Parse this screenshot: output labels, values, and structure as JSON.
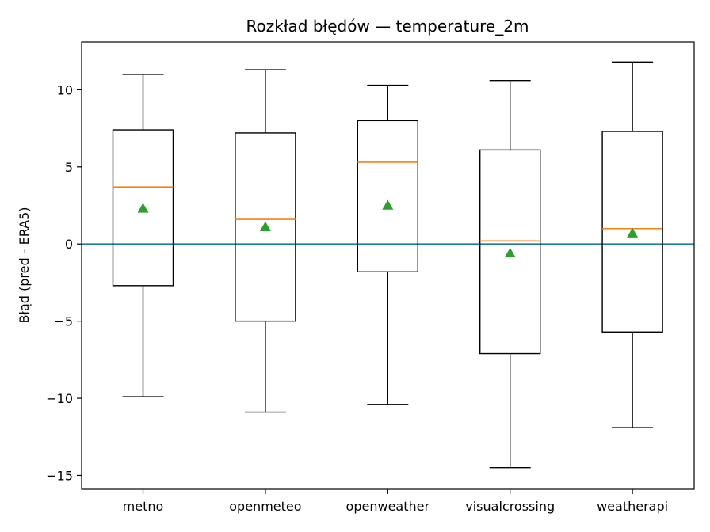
{
  "chart_data": {
    "type": "box",
    "title": "Rozkład błędów — temperature_2m",
    "xlabel": "",
    "ylabel": "Błąd (pred - ERA5)",
    "ylim": [
      -15.9,
      13.1
    ],
    "yticks": [
      10,
      5,
      0,
      -5,
      -10,
      -15
    ],
    "ytick_labels": [
      "10",
      "5",
      "0",
      "−5",
      "−10",
      "−15"
    ],
    "categories": [
      "metno",
      "openmeteo",
      "openweather",
      "visualcrossing",
      "weatherapi"
    ],
    "series": [
      {
        "category": "metno",
        "whisker_low": -9.9,
        "q1": -2.7,
        "median": 3.7,
        "q3": 7.4,
        "whisker_high": 11.0,
        "mean": 2.3
      },
      {
        "category": "openmeteo",
        "whisker_low": -10.9,
        "q1": -5.0,
        "median": 1.6,
        "q3": 7.2,
        "whisker_high": 11.3,
        "mean": 1.1
      },
      {
        "category": "openweather",
        "whisker_low": -10.4,
        "q1": -1.8,
        "median": 5.3,
        "q3": 8.0,
        "whisker_high": 10.3,
        "mean": 2.5
      },
      {
        "category": "visualcrossing",
        "whisker_low": -14.5,
        "q1": -7.1,
        "median": 0.2,
        "q3": 6.1,
        "whisker_high": 10.6,
        "mean": -0.6
      },
      {
        "category": "weatherapi",
        "whisker_low": -11.9,
        "q1": -5.7,
        "median": 1.0,
        "q3": 7.3,
        "whisker_high": 11.8,
        "mean": 0.7
      }
    ],
    "reference_line": 0,
    "grid": false,
    "colors": {
      "box": "#000000",
      "median": "#ff7f0e",
      "mean": "#2ca02c",
      "reference": "#1f77b4"
    }
  }
}
